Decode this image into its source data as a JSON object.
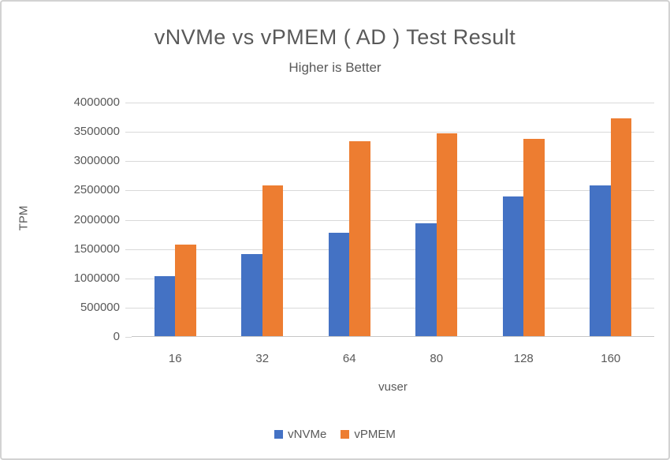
{
  "chart_data": {
    "type": "bar",
    "title": "vNVMe vs vPMEM ( AD ) Test Result",
    "subtitle": "Higher is Better",
    "categories": [
      "16",
      "32",
      "64",
      "80",
      "128",
      "160"
    ],
    "series": [
      {
        "name": "vNVMe",
        "color": "#4472C4",
        "values": [
          1040000,
          1410000,
          1780000,
          1940000,
          2400000,
          2580000
        ]
      },
      {
        "name": "vPMEM",
        "color": "#ED7D31",
        "values": [
          1570000,
          2590000,
          3340000,
          3470000,
          3380000,
          3730000
        ]
      }
    ],
    "xlabel": "vuser",
    "ylabel": "TPM",
    "ylim": [
      0,
      4000000
    ],
    "ytick_step": 500000,
    "ytick_labels": [
      "0",
      "500000",
      "1000000",
      "1500000",
      "2000000",
      "2500000",
      "3000000",
      "3500000",
      "4000000"
    ],
    "grid": true,
    "legend_position": "bottom"
  },
  "colors": {
    "gridline": "#D9D9D9",
    "axis_line": "#C6C6C6",
    "text": "#595959",
    "frame_border": "#D2D2D2",
    "series_vnvme": "#4472C4",
    "series_vpmem": "#ED7D31"
  }
}
